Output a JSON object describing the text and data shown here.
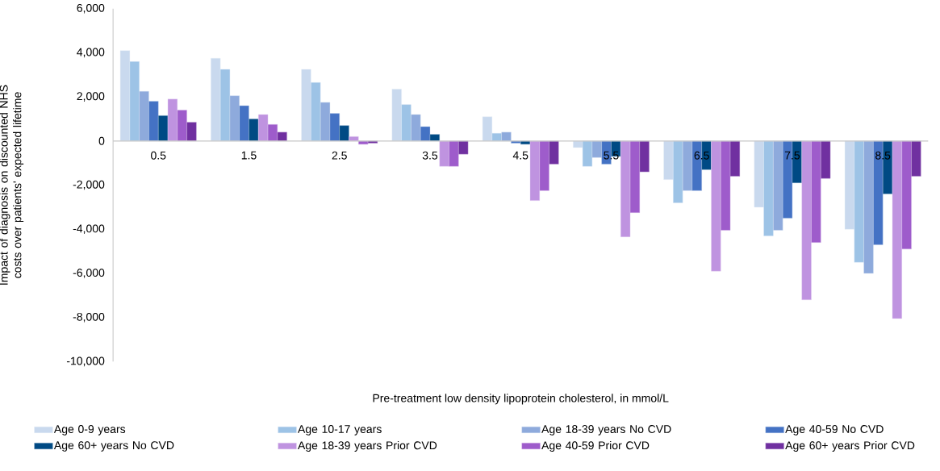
{
  "chart_data": {
    "type": "bar",
    "xlabel": "Pre-treatment low density lipoprotein cholesterol, in mmol/L",
    "ylabel": "Impact of diagnosis on discounted  NHS costs over patients' expected lifetime",
    "categories": [
      "0.5",
      "1.5",
      "2.5",
      "3.5",
      "4.5",
      "5.5",
      "6.5",
      "7.5",
      "8.5"
    ],
    "series": [
      {
        "name": "Age 0-9 years",
        "color": "#c9d9ee",
        "values": [
          4100,
          3750,
          3250,
          2350,
          1100,
          -300,
          -1750,
          -3000,
          -4000
        ]
      },
      {
        "name": "Age 10-17 years",
        "color": "#9dc3e6",
        "values": [
          3600,
          3250,
          2650,
          1650,
          350,
          -1150,
          -2800,
          -4300,
          -5500
        ]
      },
      {
        "name": "Age 18-39 years No CVD",
        "color": "#8eaadc",
        "values": [
          2250,
          2050,
          1750,
          1200,
          400,
          -750,
          -2250,
          -4050,
          -6000
        ]
      },
      {
        "name": "Age 40-59 No CVD",
        "color": "#4472c4",
        "values": [
          1800,
          1600,
          1250,
          650,
          -100,
          -1050,
          -2250,
          -3500,
          -4700
        ]
      },
      {
        "name": "Age 60+ years No CVD",
        "color": "#004a84",
        "values": [
          1150,
          1000,
          700,
          300,
          -150,
          -700,
          -1300,
          -1900,
          -2400
        ]
      },
      {
        "name": "Age 18-39 years Prior CVD",
        "color": "#bf93e0",
        "values": [
          1900,
          1200,
          200,
          -1150,
          -2700,
          -4350,
          -5900,
          -7200,
          -8050
        ]
      },
      {
        "name": "Age 40-59 Prior CVD",
        "color": "#9e5ccb",
        "values": [
          1400,
          750,
          -150,
          -1150,
          -2250,
          -3250,
          -4050,
          -4600,
          -4900
        ]
      },
      {
        "name": "Age 60+ years Prior CVD",
        "color": "#7030a0",
        "values": [
          850,
          400,
          -100,
          -600,
          -1050,
          -1400,
          -1600,
          -1700,
          -1600
        ]
      }
    ],
    "ylim": [
      -10000,
      6000
    ],
    "yticks": [
      {
        "value": -10000,
        "label": "-10,000"
      },
      {
        "value": -8000,
        "label": "-8,000"
      },
      {
        "value": -6000,
        "label": "-6,000"
      },
      {
        "value": -4000,
        "label": "-4,000"
      },
      {
        "value": -2000,
        "label": "-2,000"
      },
      0,
      {
        "value": 2000,
        "label": "2,000"
      },
      {
        "value": 4000,
        "label": "4,000"
      },
      {
        "value": 6000,
        "label": "6,000"
      }
    ],
    "legend": "bottom"
  }
}
